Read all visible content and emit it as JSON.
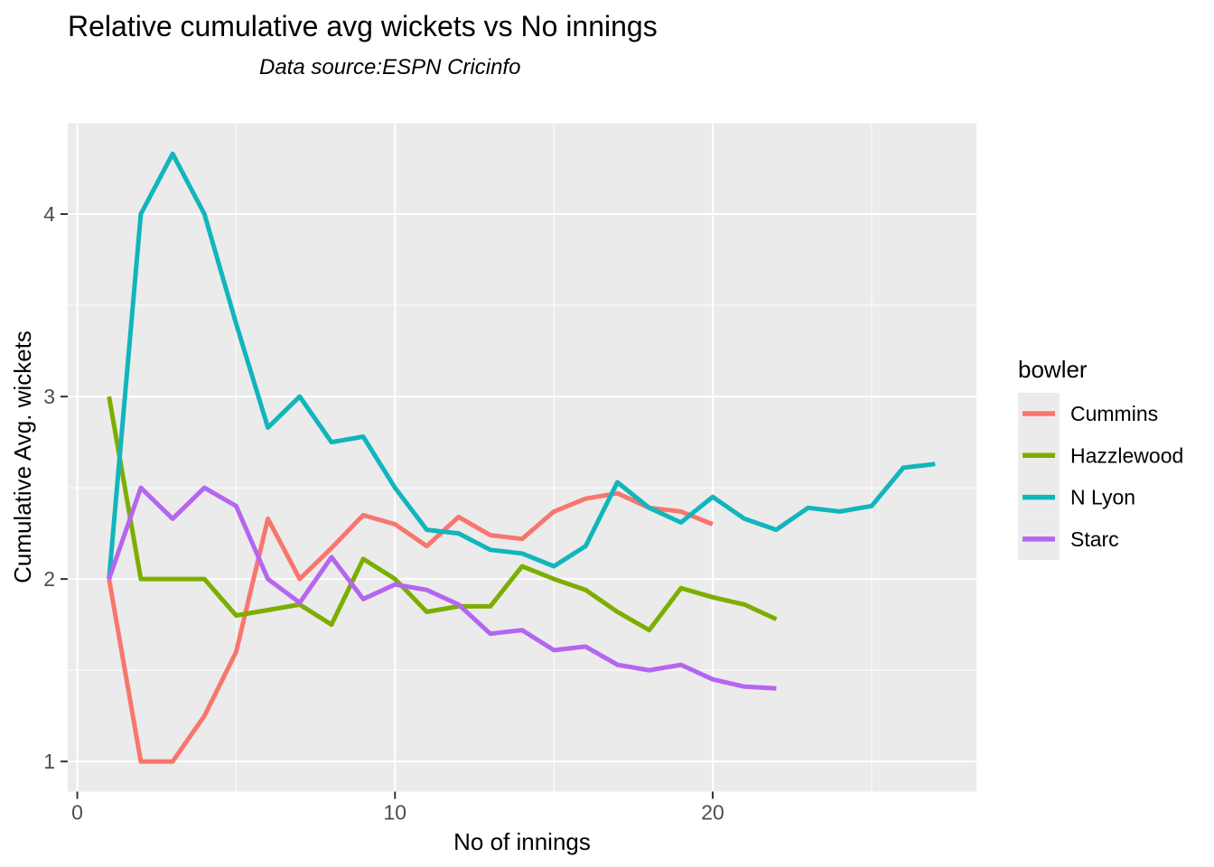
{
  "chart_data": {
    "type": "line",
    "title": "Relative cumulative avg wickets vs No innings",
    "subtitle": "Data source:ESPN Cricinfo",
    "xlabel": "No of innings",
    "ylabel": "Cumulative Avg. wickets",
    "legend_title": "bowler",
    "legend_position": "right",
    "grid": true,
    "x_ticks": [
      0,
      10,
      20
    ],
    "x_minor_ticks": [
      5,
      15,
      25
    ],
    "y_ticks": [
      1,
      2,
      3,
      4
    ],
    "y_minor_ticks": [
      1.5,
      2.5,
      3.5,
      4.5
    ],
    "xlim": [
      -0.3,
      28.3
    ],
    "ylim": [
      0.835,
      4.5
    ],
    "x_start": 1,
    "x_unit": "innings",
    "colors": {
      "panel_bg": "#EBEBEB",
      "grid": "#FFFFFF",
      "tick_mark": "#333333",
      "tick_label": "#4D4D4D",
      "text": "#000000"
    },
    "series": [
      {
        "name": "Cummins",
        "color": "#F8766D",
        "values": [
          2.0,
          1.0,
          1.0,
          1.25,
          1.6,
          2.33,
          2.0,
          2.17,
          2.35,
          2.3,
          2.18,
          2.34,
          2.24,
          2.22,
          2.37,
          2.44,
          2.47,
          2.39,
          2.37,
          2.3
        ]
      },
      {
        "name": "Hazzlewood",
        "color": "#7CAE00",
        "values": [
          3.0,
          2.0,
          2.0,
          2.0,
          1.8,
          1.83,
          1.86,
          1.75,
          2.11,
          2.0,
          1.82,
          1.85,
          1.85,
          2.07,
          2.0,
          1.94,
          1.82,
          1.72,
          1.95,
          1.9,
          1.86,
          1.78
        ]
      },
      {
        "name": "N Lyon",
        "color": "#12B5BC",
        "values": [
          2.0,
          4.0,
          4.33,
          4.0,
          3.4,
          2.83,
          3.0,
          2.75,
          2.78,
          2.5,
          2.27,
          2.25,
          2.16,
          2.14,
          2.07,
          2.18,
          2.53,
          2.39,
          2.31,
          2.45,
          2.33,
          2.27,
          2.39,
          2.37,
          2.4,
          2.61,
          2.63
        ]
      },
      {
        "name": "Starc",
        "color": "#B466F0",
        "values": [
          2.0,
          2.5,
          2.33,
          2.5,
          2.4,
          2.0,
          1.87,
          2.12,
          1.89,
          1.97,
          1.94,
          1.86,
          1.7,
          1.72,
          1.61,
          1.63,
          1.53,
          1.5,
          1.53,
          1.45,
          1.41,
          1.4
        ]
      }
    ]
  }
}
